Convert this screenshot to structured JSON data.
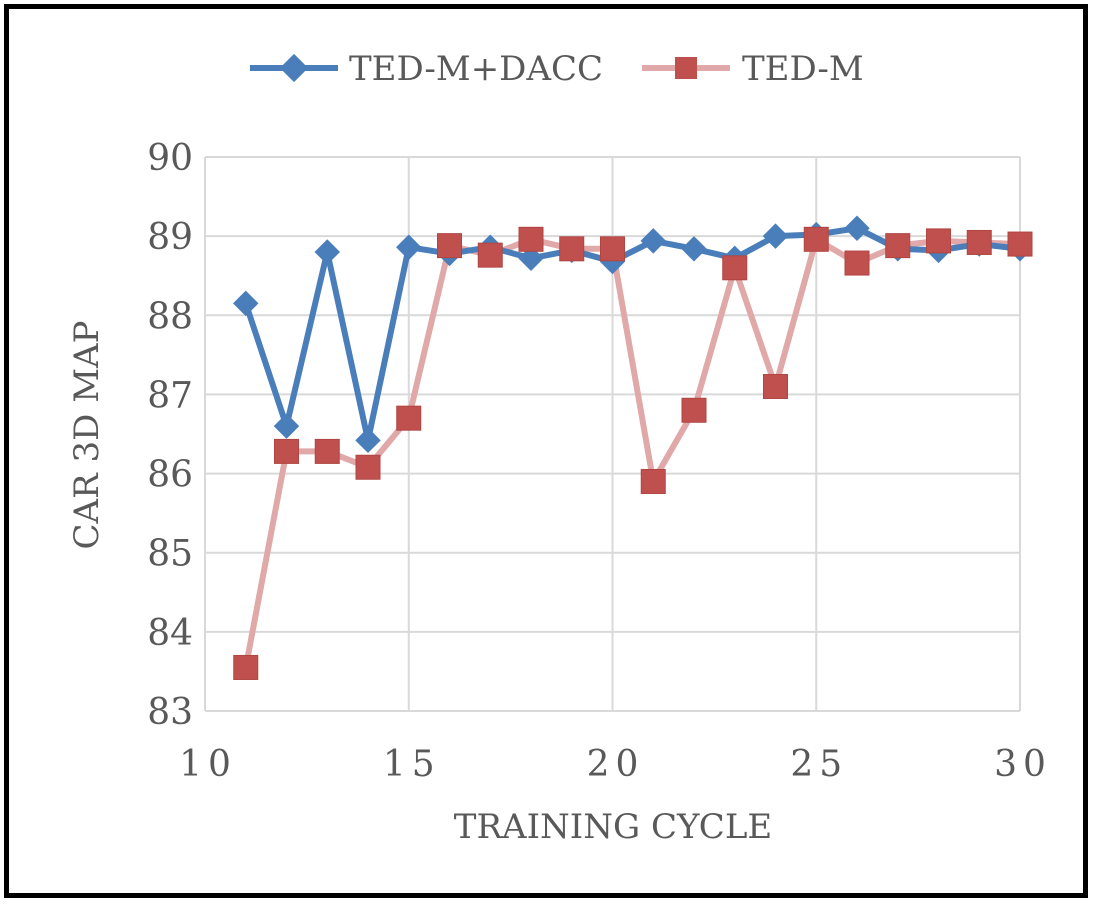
{
  "chart_data": {
    "type": "line",
    "title": "",
    "xlabel": "TRAINING CYCLE",
    "ylabel": "CAR 3D MAP",
    "xlim": [
      10,
      30
    ],
    "ylim": [
      83,
      90
    ],
    "x_ticks": [
      "10",
      "15",
      "20",
      "25",
      "30"
    ],
    "y_ticks": [
      "83",
      "84",
      "85",
      "86",
      "87",
      "88",
      "89",
      "90"
    ],
    "grid": true,
    "legend_position": "top",
    "x": [
      11,
      12,
      13,
      14,
      15,
      16,
      17,
      18,
      19,
      20,
      21,
      22,
      23,
      24,
      25,
      26,
      27,
      28,
      29,
      30
    ],
    "series": [
      {
        "name": "TED-M+DACC",
        "color": "#4a7ebb",
        "marker": "diamond",
        "values": [
          88.15,
          86.6,
          88.8,
          86.42,
          88.86,
          88.78,
          88.86,
          88.72,
          88.82,
          88.68,
          88.94,
          88.84,
          88.72,
          89.0,
          89.02,
          89.1,
          88.84,
          88.82,
          88.9,
          88.84
        ]
      },
      {
        "name": "TED-M",
        "color": "#c0504d",
        "line_color": "#e0a8a8",
        "marker": "square",
        "values": [
          83.55,
          86.28,
          86.28,
          86.08,
          86.7,
          88.88,
          88.76,
          88.96,
          88.84,
          88.84,
          85.9,
          86.8,
          88.6,
          87.1,
          88.96,
          88.66,
          88.88,
          88.94,
          88.92,
          88.9
        ]
      }
    ]
  }
}
